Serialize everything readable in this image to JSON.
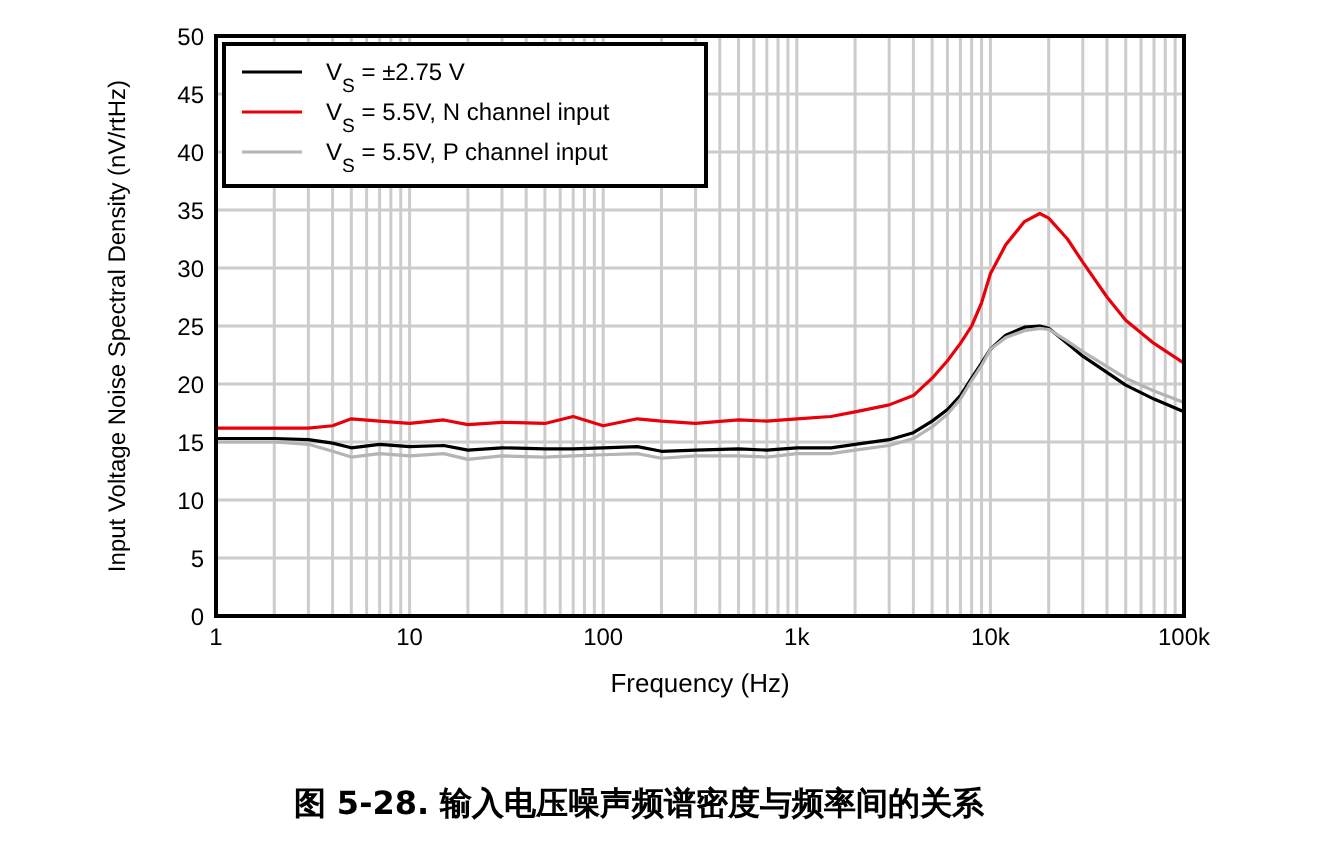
{
  "chart_data": {
    "type": "line",
    "title": "图 5-28. 输入电压噪声频谱密度与频率间的关系",
    "xlabel": "Frequency (Hz)",
    "ylabel": "Input Voltage Noise Spectral Density (nV/rtHz)",
    "x": [
      1,
      2,
      3,
      4,
      5,
      7,
      10,
      15,
      20,
      30,
      50,
      70,
      100,
      150,
      200,
      300,
      500,
      700,
      1000,
      1500,
      2000,
      3000,
      4000,
      5000,
      6000,
      7000,
      8000,
      9000,
      10000,
      12000,
      15000,
      18000,
      20000,
      25000,
      30000,
      40000,
      50000,
      70000,
      100000
    ],
    "series": [
      {
        "name": "V$_{S}$ = ±2.75 V",
        "color": "#000000",
        "values": [
          15.3,
          15.3,
          15.2,
          14.9,
          14.5,
          14.8,
          14.6,
          14.7,
          14.3,
          14.5,
          14.4,
          14.4,
          14.5,
          14.6,
          14.2,
          14.3,
          14.4,
          14.3,
          14.5,
          14.5,
          14.8,
          15.2,
          15.8,
          16.8,
          17.8,
          19.0,
          20.5,
          21.8,
          23.0,
          24.2,
          24.9,
          25.0,
          24.8,
          23.5,
          22.4,
          21.0,
          19.9,
          18.7,
          17.6
        ]
      },
      {
        "name": "V$_{S}$ = 5.5V, N channel input",
        "color": "#e8000b",
        "values": [
          16.2,
          16.2,
          16.2,
          16.4,
          17.0,
          16.8,
          16.6,
          16.9,
          16.5,
          16.7,
          16.6,
          17.2,
          16.4,
          17.0,
          16.8,
          16.6,
          16.9,
          16.8,
          17.0,
          17.2,
          17.6,
          18.2,
          19.0,
          20.5,
          22.0,
          23.5,
          25.0,
          27.0,
          29.5,
          32.0,
          34.0,
          34.7,
          34.3,
          32.5,
          30.5,
          27.5,
          25.5,
          23.5,
          21.8
        ]
      },
      {
        "name": "V$_{S}$ = 5.5V, P channel input",
        "color": "#b4b4b4",
        "values": [
          15.0,
          15.0,
          14.8,
          14.2,
          13.7,
          14.0,
          13.8,
          14.0,
          13.5,
          13.8,
          13.7,
          13.8,
          13.9,
          14.0,
          13.6,
          13.8,
          13.8,
          13.7,
          14.0,
          14.0,
          14.3,
          14.7,
          15.3,
          16.3,
          17.4,
          18.7,
          20.3,
          21.6,
          23.0,
          24.0,
          24.6,
          24.8,
          24.7,
          23.7,
          22.8,
          21.5,
          20.5,
          19.4,
          18.4
        ]
      }
    ],
    "log": "x",
    "xlim": [
      1,
      100000
    ],
    "xticks": [
      {
        "value": 1,
        "label": "1"
      },
      {
        "value": 2,
        "label": null
      },
      {
        "value": 3,
        "label": null
      },
      {
        "value": 4,
        "label": null
      },
      {
        "value": 5,
        "label": null
      },
      {
        "value": 6,
        "label": null
      },
      {
        "value": 7,
        "label": null
      },
      {
        "value": 8,
        "label": null
      },
      {
        "value": 9,
        "label": null
      },
      {
        "value": 10,
        "label": "10"
      },
      {
        "value": 20,
        "label": null
      },
      {
        "value": 30,
        "label": null
      },
      {
        "value": 40,
        "label": null
      },
      {
        "value": 50,
        "label": null
      },
      {
        "value": 60,
        "label": null
      },
      {
        "value": 70,
        "label": null
      },
      {
        "value": 80,
        "label": null
      },
      {
        "value": 90,
        "label": null
      },
      {
        "value": 100,
        "label": "100"
      },
      {
        "value": 200,
        "label": null
      },
      {
        "value": 300,
        "label": null
      },
      {
        "value": 400,
        "label": null
      },
      {
        "value": 500,
        "label": null
      },
      {
        "value": 600,
        "label": null
      },
      {
        "value": 700,
        "label": null
      },
      {
        "value": 800,
        "label": null
      },
      {
        "value": 900,
        "label": null
      },
      {
        "value": 1000,
        "label": "1k"
      },
      {
        "value": 2000,
        "label": null
      },
      {
        "value": 3000,
        "label": null
      },
      {
        "value": 4000,
        "label": null
      },
      {
        "value": 5000,
        "label": null
      },
      {
        "value": 6000,
        "label": null
      },
      {
        "value": 7000,
        "label": null
      },
      {
        "value": 8000,
        "label": null
      },
      {
        "value": 9000,
        "label": null
      },
      {
        "value": 10000,
        "label": "10k"
      },
      {
        "value": 20000,
        "label": null
      },
      {
        "value": 30000,
        "label": null
      },
      {
        "value": 40000,
        "label": null
      },
      {
        "value": 50000,
        "label": null
      },
      {
        "value": 60000,
        "label": null
      },
      {
        "value": 70000,
        "label": null
      },
      {
        "value": 80000,
        "label": null
      },
      {
        "value": 90000,
        "label": null
      },
      {
        "value": 100000,
        "label": "100k"
      }
    ],
    "ylim": [
      0,
      50
    ],
    "yticks": [
      0,
      5,
      10,
      15,
      20,
      25,
      30,
      35,
      40,
      45,
      50
    ],
    "grid": true,
    "legend": "top left",
    "marker": "none",
    "line_style": "solid"
  }
}
